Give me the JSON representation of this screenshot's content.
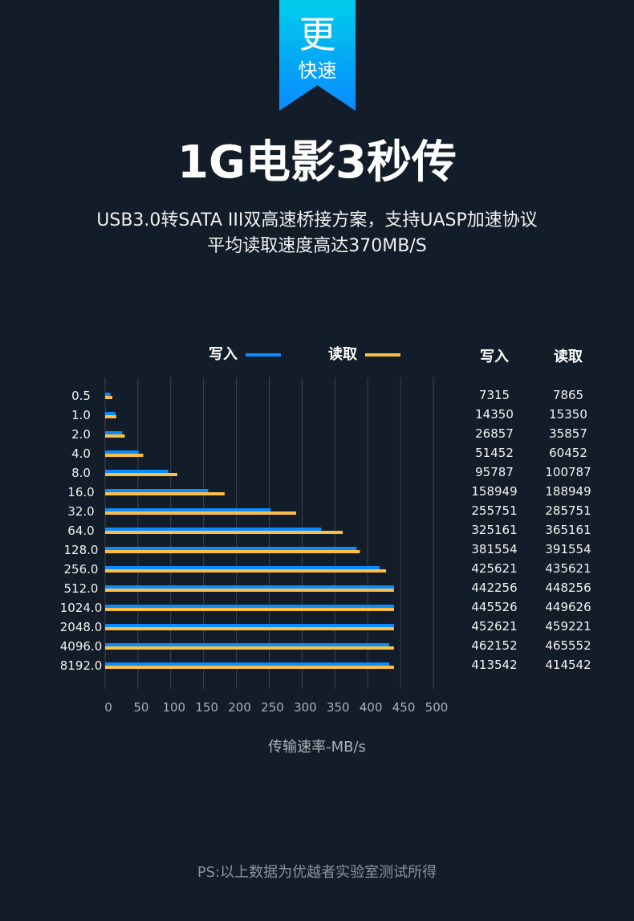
{
  "badge": {
    "line1": "更",
    "line2": "快速"
  },
  "headline": "1G电影3秒传",
  "subtitle": {
    "line1": "USB3.0转SATA III双高速桥接方案，支持UASP加速协议",
    "line2": "平均读取速度高达370MB/S"
  },
  "colors": {
    "write": "#0a8cff",
    "read": "#fbbf45",
    "grid": "#3a4552",
    "background": "#131d29"
  },
  "chart_data": {
    "type": "bar",
    "orientation": "horizontal",
    "categories": [
      "0.5",
      "1.0",
      "2.0",
      "4.0",
      "8.0",
      "16.0",
      "32.0",
      "64.0",
      "128.0",
      "256.0",
      "512.0",
      "1024.0",
      "2048.0",
      "4096.0",
      "8192.0"
    ],
    "series": [
      {
        "name": "写入",
        "values": [
          8,
          16,
          26,
          51,
          96,
          157,
          252,
          329,
          383,
          418,
          440,
          440,
          440,
          433,
          433
        ]
      },
      {
        "name": "读取",
        "values": [
          11,
          17,
          30,
          58,
          110,
          182,
          291,
          362,
          388,
          428,
          440,
          440,
          440,
          440,
          440
        ]
      }
    ],
    "xticks": [
      "0",
      "50",
      "100",
      "150",
      "200",
      "250",
      "300",
      "350",
      "400",
      "450",
      "500"
    ],
    "xlim": [
      0,
      500
    ],
    "xlabel": "传输速率-MB/s",
    "legend": "top",
    "grid": true
  },
  "table": {
    "headers": [
      "写入",
      "读取"
    ],
    "rows": [
      [
        "7315",
        "7865"
      ],
      [
        "14350",
        "15350"
      ],
      [
        "26857",
        "35857"
      ],
      [
        "51452",
        "60452"
      ],
      [
        "95787",
        "100787"
      ],
      [
        "158949",
        "188949"
      ],
      [
        "255751",
        "285751"
      ],
      [
        "325161",
        "365161"
      ],
      [
        "381554",
        "391554"
      ],
      [
        "425621",
        "435621"
      ],
      [
        "442256",
        "448256"
      ],
      [
        "445526",
        "449626"
      ],
      [
        "452621",
        "459221"
      ],
      [
        "462152",
        "465552"
      ],
      [
        "413542",
        "414542"
      ]
    ]
  },
  "footnote": "PS:以上数据为优越者实验室测试所得"
}
